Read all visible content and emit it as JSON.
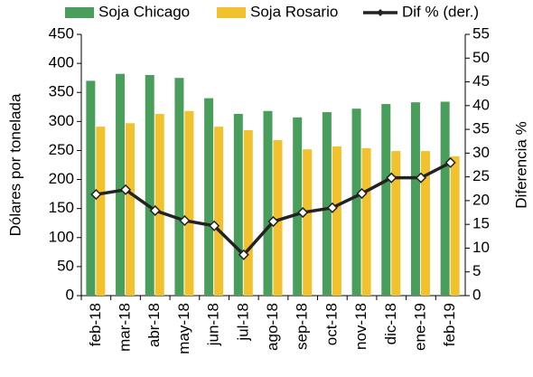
{
  "chart_data": {
    "type": "bar-line",
    "categories": [
      "feb-18",
      "mar-18",
      "abr-18",
      "may-18",
      "jun-18",
      "jul-18",
      "ago-18",
      "sep-18",
      "oct-18",
      "nov-18",
      "dic-18",
      "ene-19",
      "feb-19"
    ],
    "series": [
      {
        "name": "Soja Chicago",
        "color": "#4a9e5c",
        "type": "bar",
        "values": [
          370,
          382,
          380,
          375,
          340,
          313,
          318,
          307,
          316,
          322,
          330,
          333,
          334
        ]
      },
      {
        "name": "Soja Rosario",
        "color": "#f2c12e",
        "type": "bar",
        "values": [
          291,
          297,
          313,
          318,
          291,
          285,
          268,
          252,
          257,
          254,
          249,
          249,
          240
        ]
      },
      {
        "name": "Dif % (der.)",
        "color": "#222222",
        "type": "line",
        "axis": "y2",
        "values": [
          21.3,
          22.3,
          17.9,
          15.8,
          14.7,
          8.6,
          15.6,
          17.5,
          18.5,
          21.5,
          24.8,
          24.8,
          28
        ]
      }
    ],
    "ylabel": "Dólares por tonelada",
    "y2label": "Diferencia %",
    "ylim": [
      0,
      450
    ],
    "yticks": [
      0,
      50,
      100,
      150,
      200,
      250,
      300,
      350,
      400,
      450
    ],
    "y2lim": [
      0,
      55
    ],
    "y2ticks": [
      0,
      5,
      10,
      15,
      20,
      25,
      30,
      35,
      40,
      45,
      50,
      55
    ],
    "legend": "top"
  }
}
